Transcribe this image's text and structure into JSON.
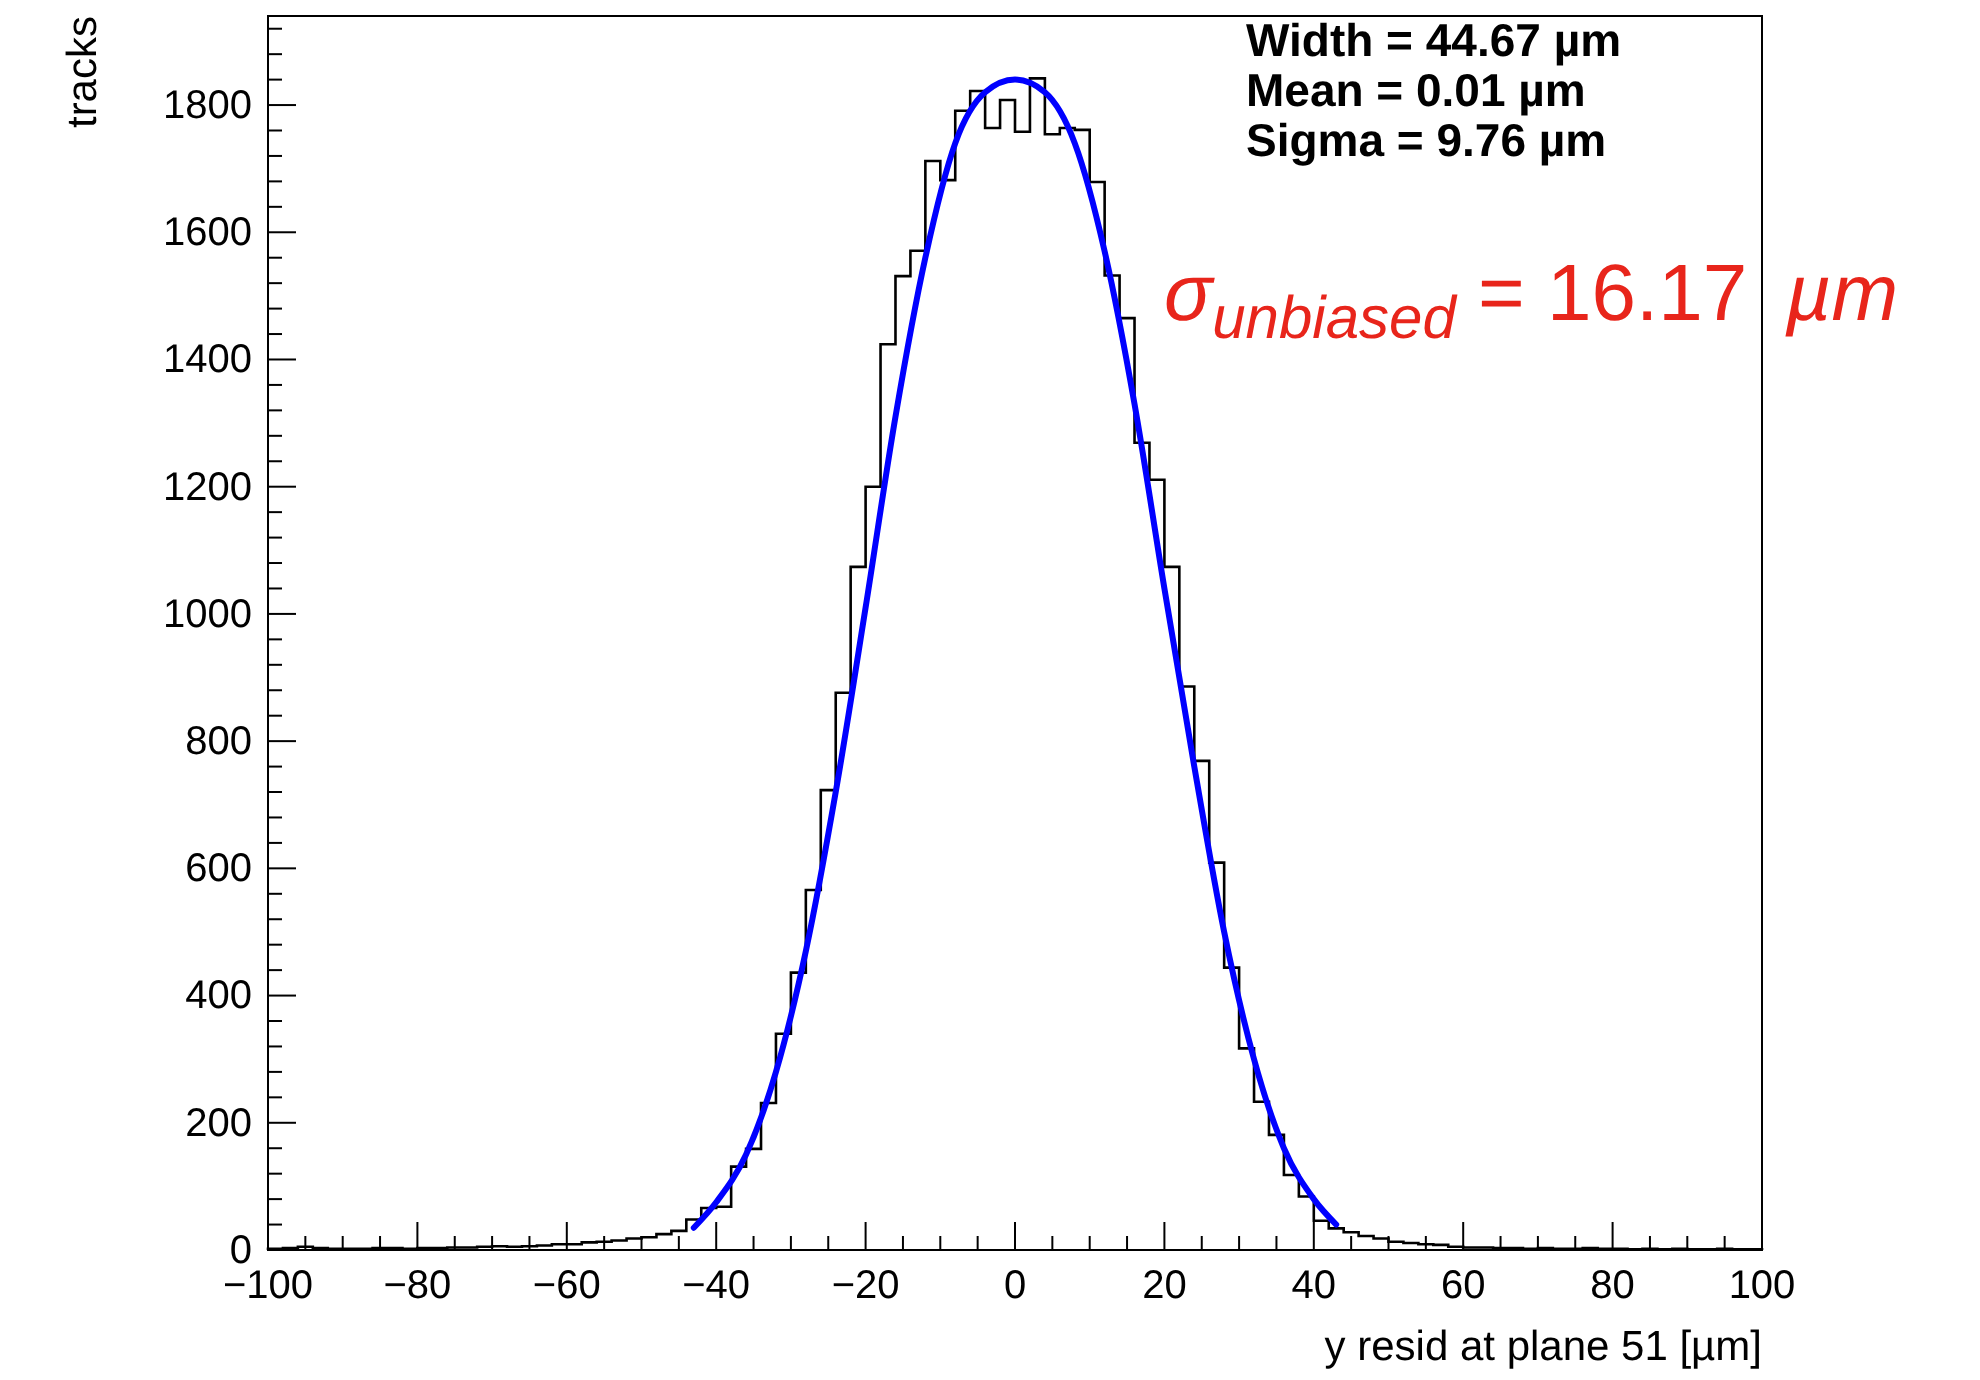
{
  "chart_data": {
    "type": "histogram",
    "xlabel": "y resid at plane 51 [µm]",
    "ylabel": "tracks",
    "annotations": [
      "Width = 44.67  µm",
      "Mean = 0.01 µm",
      "Sigma  = 9.76  µm",
      "σ$_{unbiased}$ = 16.17 µm"
    ],
    "bins": [
      -100,
      -98,
      -96,
      -94,
      -92,
      -90,
      -88,
      -86,
      -84,
      -82,
      -80,
      -78,
      -76,
      -74,
      -72,
      -70,
      -68,
      -66,
      -64,
      -62,
      -60,
      -58,
      -56,
      -54,
      -52,
      -50,
      -48,
      -46,
      -44,
      -42,
      -40,
      -38,
      -36,
      -34,
      -32,
      -30,
      -28,
      -26,
      -24,
      -22,
      -20,
      -18,
      -16,
      -14,
      -12,
      -10,
      -8,
      -6,
      -4,
      -2,
      0,
      2,
      4,
      6,
      8,
      10,
      12,
      14,
      16,
      18,
      20,
      22,
      24,
      26,
      28,
      30,
      32,
      34,
      36,
      38,
      40,
      42,
      44,
      46,
      48,
      50,
      52,
      54,
      56,
      58,
      60,
      62,
      64,
      66,
      68,
      70,
      72,
      74,
      76,
      78,
      80,
      82,
      84,
      86,
      88,
      90,
      92,
      94,
      96,
      98,
      100
    ],
    "series": [
      {
        "color": "#000000",
        "values": [
          2,
          3,
          5,
          3,
          2,
          2,
          2,
          3,
          3,
          2,
          3,
          3,
          4,
          4,
          5,
          6,
          5,
          6,
          7,
          9,
          9,
          12,
          13,
          15,
          18,
          20,
          25,
          30,
          48,
          66,
          68,
          131,
          159,
          231,
          340,
          436,
          566,
          723,
          876,
          1074,
          1200,
          1424,
          1531,
          1571,
          1712,
          1682,
          1791,
          1822,
          1764,
          1808,
          1758,
          1842,
          1754,
          1764,
          1761,
          1679,
          1532,
          1465,
          1269,
          1211,
          1074,
          886,
          769,
          609,
          444,
          317,
          233,
          181,
          118,
          84,
          46,
          34,
          28,
          22,
          18,
          13,
          11,
          9,
          8,
          5,
          4,
          4,
          3,
          3,
          2,
          3,
          2,
          2,
          3,
          2,
          2,
          1,
          2,
          1,
          2,
          1,
          1,
          2,
          1,
          1
        ]
      },
      {
        "type": "line",
        "color": "#0000ff",
        "x": [
          -43,
          -40,
          -36,
          -32,
          -28,
          -24,
          -20,
          -16,
          -12,
          -8,
          -4,
          0,
          4,
          8,
          12,
          16,
          20,
          24,
          28,
          32,
          36,
          40,
          43
        ],
        "values": [
          35,
          75,
          150,
          280,
          470,
          720,
          1010,
          1310,
          1560,
          1740,
          1820,
          1840,
          1820,
          1740,
          1570,
          1330,
          1040,
          760,
          500,
          300,
          160,
          80,
          40
        ]
      }
    ],
    "xlim": [
      -100,
      100
    ],
    "xticks": [
      -100,
      {
        "value": -95,
        "label": null
      },
      {
        "value": -90,
        "label": null
      },
      {
        "value": -85,
        "label": null
      },
      -80,
      {
        "value": -75,
        "label": null
      },
      {
        "value": -70,
        "label": null
      },
      {
        "value": -65,
        "label": null
      },
      -60,
      {
        "value": -55,
        "label": null
      },
      {
        "value": -50,
        "label": null
      },
      {
        "value": -45,
        "label": null
      },
      -40,
      {
        "value": -35,
        "label": null
      },
      {
        "value": -30,
        "label": null
      },
      {
        "value": -25,
        "label": null
      },
      -20,
      {
        "value": -15,
        "label": null
      },
      {
        "value": -10,
        "label": null
      },
      {
        "value": -5,
        "label": null
      },
      0,
      {
        "value": 5,
        "label": null
      },
      {
        "value": 10,
        "label": null
      },
      {
        "value": 15,
        "label": null
      },
      20,
      {
        "value": 25,
        "label": null
      },
      {
        "value": 30,
        "label": null
      },
      {
        "value": 35,
        "label": null
      },
      40,
      {
        "value": 45,
        "label": null
      },
      {
        "value": 50,
        "label": null
      },
      {
        "value": 55,
        "label": null
      },
      60,
      {
        "value": 65,
        "label": null
      },
      {
        "value": 70,
        "label": null
      },
      {
        "value": 75,
        "label": null
      },
      80,
      {
        "value": 85,
        "label": null
      },
      {
        "value": 90,
        "label": null
      },
      {
        "value": 95,
        "label": null
      },
      100
    ],
    "ylim": [
      0,
      1940
    ],
    "yticks": [
      0,
      {
        "value": 40,
        "label": null
      },
      {
        "value": 80,
        "label": null
      },
      {
        "value": 120,
        "label": null
      },
      {
        "value": 160,
        "label": null
      },
      200,
      {
        "value": 240,
        "label": null
      },
      {
        "value": 280,
        "label": null
      },
      {
        "value": 320,
        "label": null
      },
      {
        "value": 360,
        "label": null
      },
      400,
      {
        "value": 440,
        "label": null
      },
      {
        "value": 480,
        "label": null
      },
      {
        "value": 520,
        "label": null
      },
      {
        "value": 560,
        "label": null
      },
      600,
      {
        "value": 640,
        "label": null
      },
      {
        "value": 680,
        "label": null
      },
      {
        "value": 720,
        "label": null
      },
      {
        "value": 760,
        "label": null
      },
      800,
      {
        "value": 840,
        "label": null
      },
      {
        "value": 880,
        "label": null
      },
      {
        "value": 920,
        "label": null
      },
      {
        "value": 960,
        "label": null
      },
      1000,
      {
        "value": 1040,
        "label": null
      },
      {
        "value": 1080,
        "label": null
      },
      {
        "value": 1120,
        "label": null
      },
      {
        "value": 1160,
        "label": null
      },
      1200,
      {
        "value": 1240,
        "label": null
      },
      {
        "value": 1280,
        "label": null
      },
      {
        "value": 1320,
        "label": null
      },
      {
        "value": 1360,
        "label": null
      },
      1400,
      {
        "value": 1440,
        "label": null
      },
      {
        "value": 1480,
        "label": null
      },
      {
        "value": 1520,
        "label": null
      },
      {
        "value": 1560,
        "label": null
      },
      1600,
      {
        "value": 1640,
        "label": null
      },
      {
        "value": 1680,
        "label": null
      },
      {
        "value": 1720,
        "label": null
      },
      {
        "value": 1760,
        "label": null
      },
      1800,
      {
        "value": 1840,
        "label": null
      },
      {
        "value": 1880,
        "label": null
      },
      {
        "value": 1920,
        "label": null
      }
    ]
  }
}
